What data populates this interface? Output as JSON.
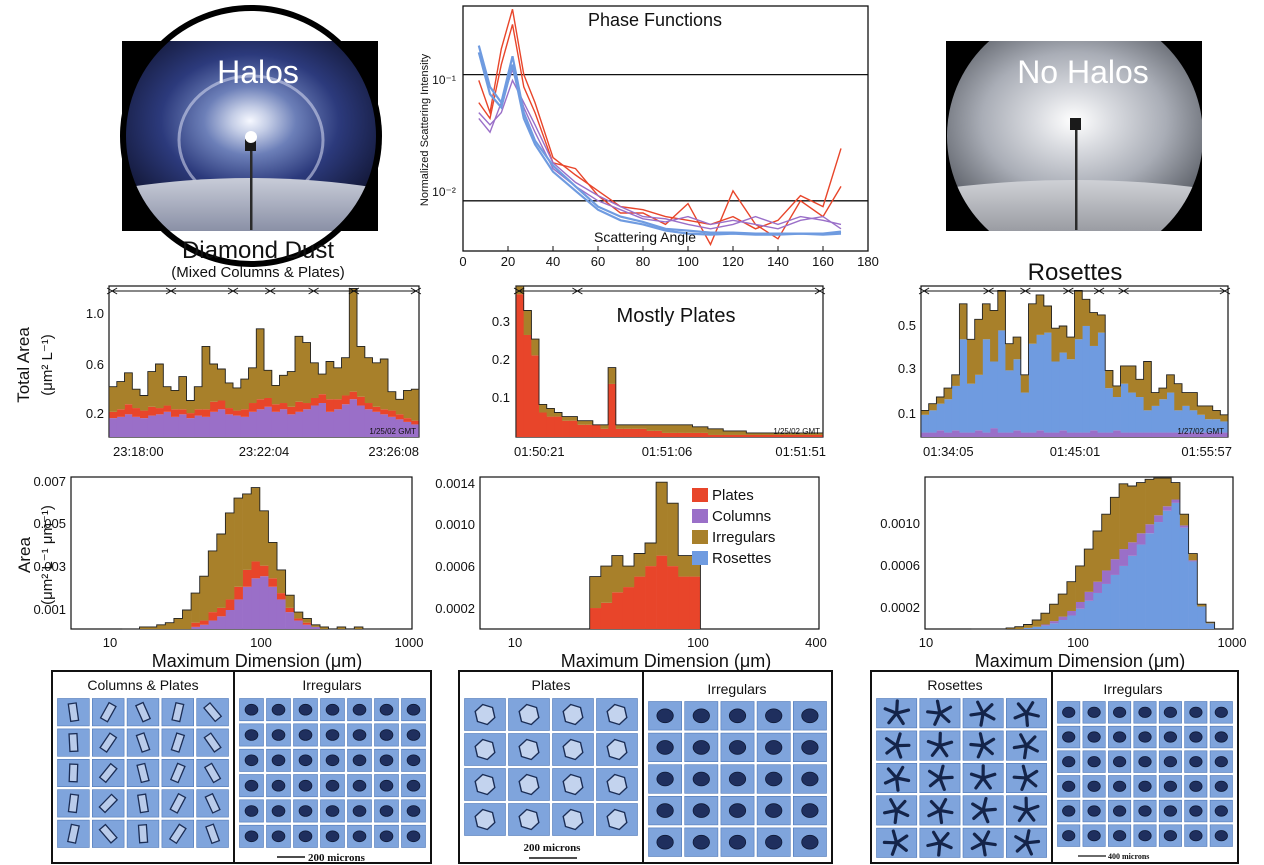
{
  "colors": {
    "plates": "#e8452a",
    "columns": "#9a6fc8",
    "irregulars": "#a8802a",
    "rosettes": "#6f9be0",
    "frame": "#111111"
  },
  "photos": {
    "left": {
      "caption": "Halos",
      "title": "Diamond Dust",
      "subtitle": "(Mixed Columns & Plates)"
    },
    "right": {
      "caption": "No Halos",
      "title": "Rosettes"
    }
  },
  "phase": {
    "title": "Phase Functions",
    "ylabel": "Normalized Scattering Intensity",
    "xlabel": "Scattering Angle",
    "yticks": [
      "10⁻¹",
      "10⁻²"
    ],
    "xticks": [
      "0",
      "20",
      "40",
      "60",
      "80",
      "100",
      "120",
      "140",
      "160",
      "180"
    ]
  },
  "ts": {
    "ylabel1": "Total Area",
    "ylabel2": "(μm² L⁻¹)",
    "a": {
      "yticks": [
        "1.0",
        "0.6",
        "0.2"
      ],
      "xticks": [
        "23:18:00",
        "23:22:04",
        "23:26:08"
      ],
      "stamp": "1/25/02 GMT"
    },
    "b": {
      "title": "Mostly Plates",
      "yticks": [
        "0.3",
        "0.2",
        "0.1"
      ],
      "xticks": [
        "01:50:21",
        "01:51:06",
        "01:51:51"
      ],
      "stamp": "1/25/02 GMT"
    },
    "c": {
      "yticks": [
        "0.5",
        "0.3",
        "0.1"
      ],
      "xticks": [
        "01:34:05",
        "01:45:01",
        "01:55:57"
      ],
      "stamp": "1/27/02 GMT"
    }
  },
  "sd": {
    "ylabel1": "Area",
    "ylabel2": "(μm² L⁻¹ μm⁻¹)",
    "xlabel": "Maximum Dimension (μm)",
    "a": {
      "yticks": [
        "0.007",
        "0.005",
        "0.003",
        "0.001"
      ],
      "xticks": [
        "10",
        "100",
        "1000"
      ]
    },
    "b": {
      "yticks": [
        "0.0014",
        "0.0010",
        "0.0006",
        "0.0002"
      ],
      "xticks": [
        "10",
        "100",
        "400"
      ]
    },
    "c": {
      "yticks": [
        "0.0010",
        "0.0006",
        "0.0002"
      ],
      "xticks": [
        "10",
        "100",
        "1000"
      ]
    }
  },
  "legend": [
    "Plates",
    "Columns",
    "Irregulars",
    "Rosettes"
  ],
  "imagery": {
    "a": {
      "left": "Columns & Plates",
      "right": "Irregulars",
      "scale": "200 microns"
    },
    "b": {
      "left": "Plates",
      "right": "Irregulars",
      "scale": "200 microns"
    },
    "c": {
      "left": "Rosettes",
      "right": "Irregulars",
      "scale": "400 microns"
    }
  },
  "chart_data": [
    {
      "type": "line",
      "title": "Phase Functions",
      "xlabel": "Scattering Angle",
      "ylabel": "Normalized Scattering Intensity",
      "xlim": [
        0,
        180
      ],
      "ylim": [
        0.004,
        0.35
      ],
      "yscale": "log",
      "series": [
        {
          "color": "#e8452a",
          "x": [
            7,
            12,
            17,
            22,
            27,
            32,
            40,
            50,
            60,
            70,
            80,
            90,
            100,
            110,
            120,
            130,
            140,
            150,
            160,
            168
          ],
          "y": [
            0.09,
            0.05,
            0.16,
            0.33,
            0.1,
            0.06,
            0.022,
            0.016,
            0.012,
            0.009,
            0.0085,
            0.0075,
            0.007,
            0.0065,
            0.0075,
            0.006,
            0.007,
            0.011,
            0.009,
            0.026
          ]
        },
        {
          "color": "#e8452a",
          "x": [
            7,
            12,
            17,
            22,
            27,
            32,
            40,
            50,
            60,
            70,
            80,
            90,
            100,
            110,
            120,
            130,
            140,
            150,
            160,
            168
          ],
          "y": [
            0.06,
            0.045,
            0.12,
            0.25,
            0.08,
            0.05,
            0.02,
            0.018,
            0.011,
            0.008,
            0.008,
            0.0065,
            0.0095,
            0.0045,
            0.012,
            0.0065,
            0.005,
            0.01,
            0.0075,
            0.013
          ]
        },
        {
          "color": "#9a6fc8",
          "x": [
            7,
            12,
            17,
            22,
            27,
            32,
            40,
            50,
            60,
            70,
            80,
            90,
            100,
            110,
            120,
            130,
            140,
            150,
            160,
            168
          ],
          "y": [
            0.05,
            0.04,
            0.05,
            0.09,
            0.06,
            0.04,
            0.02,
            0.014,
            0.011,
            0.009,
            0.0075,
            0.0072,
            0.0065,
            0.006,
            0.0065,
            0.0075,
            0.0065,
            0.0075,
            0.007,
            0.0065
          ]
        },
        {
          "color": "#9a6fc8",
          "x": [
            7,
            12,
            17,
            22,
            27,
            32,
            40,
            50,
            60,
            70,
            80,
            90,
            100,
            110,
            120,
            130,
            140,
            150,
            160,
            168
          ],
          "y": [
            0.045,
            0.035,
            0.06,
            0.11,
            0.055,
            0.035,
            0.018,
            0.013,
            0.01,
            0.0085,
            0.0072,
            0.0068,
            0.0075,
            0.0065,
            0.007,
            0.0065,
            0.006,
            0.007,
            0.0075,
            0.006
          ]
        },
        {
          "color": "#6f9be0",
          "x": [
            7,
            12,
            17,
            22,
            27,
            32,
            40,
            50,
            60,
            70,
            80,
            90,
            100,
            110,
            120,
            130,
            140,
            150,
            160,
            168
          ],
          "y": [
            0.17,
            0.08,
            0.06,
            0.14,
            0.05,
            0.03,
            0.019,
            0.013,
            0.009,
            0.0075,
            0.0068,
            0.006,
            0.0058,
            0.0056,
            0.0056,
            0.0055,
            0.0055,
            0.0055,
            0.0055,
            0.0057
          ]
        },
        {
          "color": "#6f9be0",
          "x": [
            7,
            12,
            17,
            22,
            27,
            32,
            40,
            50,
            60,
            70,
            80,
            90,
            100,
            110,
            120,
            130,
            140,
            150,
            160,
            168
          ],
          "y": [
            0.15,
            0.07,
            0.055,
            0.12,
            0.045,
            0.028,
            0.017,
            0.012,
            0.0085,
            0.007,
            0.0065,
            0.0058,
            0.0055,
            0.0054,
            0.0055,
            0.0054,
            0.0054,
            0.0055,
            0.0054,
            0.0055
          ]
        }
      ]
    },
    {
      "type": "area",
      "title": "Diamond Dust",
      "xlabel": "",
      "ylabel": "Total Area",
      "xlim": [
        0,
        40
      ],
      "ylim": [
        0,
        1.2
      ],
      "series": [
        {
          "name": "Columns",
          "values": [
            0.15,
            0.16,
            0.18,
            0.16,
            0.15,
            0.17,
            0.18,
            0.2,
            0.16,
            0.18,
            0.15,
            0.17,
            0.16,
            0.2,
            0.22,
            0.18,
            0.17,
            0.16,
            0.2,
            0.22,
            0.24,
            0.2,
            0.22,
            0.18,
            0.2,
            0.22,
            0.25,
            0.27,
            0.2,
            0.22,
            0.26,
            0.3,
            0.25,
            0.22,
            0.2,
            0.18,
            0.16,
            0.14,
            0.12,
            0.1
          ]
        },
        {
          "name": "Plates",
          "values": [
            0.05,
            0.06,
            0.08,
            0.07,
            0.06,
            0.07,
            0.05,
            0.05,
            0.06,
            0.04,
            0.04,
            0.05,
            0.06,
            0.08,
            0.07,
            0.05,
            0.04,
            0.06,
            0.07,
            0.08,
            0.07,
            0.06,
            0.05,
            0.06,
            0.08,
            0.05,
            0.06,
            0.07,
            0.1,
            0.08,
            0.07,
            0.06,
            0.07,
            0.05,
            0.04,
            0.04,
            0.05,
            0.04,
            0.03,
            0.03
          ]
        },
        {
          "name": "Irregulars",
          "values": [
            0.2,
            0.22,
            0.25,
            0.15,
            0.12,
            0.28,
            0.35,
            0.15,
            0.15,
            0.26,
            0.1,
            0.18,
            0.5,
            0.3,
            0.25,
            0.2,
            0.18,
            0.24,
            0.28,
            0.56,
            0.22,
            0.15,
            0.22,
            0.28,
            0.52,
            0.48,
            0.28,
            0.16,
            0.3,
            0.25,
            0.3,
            0.82,
            0.4,
            0.36,
            0.35,
            0.4,
            0.15,
            0.12,
            0.22,
            0.25
          ]
        }
      ]
    },
    {
      "type": "area",
      "title": "Mostly Plates",
      "xlabel": "",
      "ylabel": "Total Area",
      "xlim": [
        0,
        40
      ],
      "ylim": [
        0,
        0.37
      ],
      "series": [
        {
          "name": "Plates",
          "values": [
            0.35,
            0.25,
            0.2,
            0.06,
            0.05,
            0.05,
            0.04,
            0.04,
            0.03,
            0.03,
            0.03,
            0.02,
            0.13,
            0.02,
            0.02,
            0.02,
            0.02,
            0.015,
            0.015,
            0.01,
            0.01,
            0.01,
            0.01,
            0.01,
            0.01,
            0.005,
            0.005,
            0.005,
            0.005,
            0.005,
            0.005,
            0.005,
            0.005,
            0.005,
            0.005,
            0.005,
            0.005,
            0.005,
            0.005,
            0.005
          ]
        },
        {
          "name": "Irregulars",
          "values": [
            0.02,
            0.06,
            0.04,
            0.02,
            0.02,
            0.01,
            0.01,
            0.01,
            0.01,
            0.01,
            0.0,
            0.01,
            0.04,
            0.01,
            0.01,
            0.01,
            0.01,
            0.015,
            0.015,
            0.02,
            0.02,
            0.02,
            0.02,
            0.015,
            0.015,
            0.015,
            0.015,
            0.01,
            0.01,
            0.01,
            0.005,
            0.005,
            0.005,
            0.005,
            0.005,
            0.005,
            0.005,
            0.005,
            0.005,
            0.005
          ]
        }
      ]
    },
    {
      "type": "area",
      "title": "Rosettes",
      "xlabel": "",
      "ylabel": "Total Area",
      "xlim": [
        0,
        40
      ],
      "ylim": [
        0,
        0.68
      ],
      "series": [
        {
          "name": "Columns",
          "values": [
            0.02,
            0.02,
            0.03,
            0.02,
            0.03,
            0.02,
            0.02,
            0.03,
            0.02,
            0.04,
            0.02,
            0.02,
            0.03,
            0.02,
            0.02,
            0.03,
            0.02,
            0.02,
            0.03,
            0.02,
            0.02,
            0.02,
            0.03,
            0.02,
            0.02,
            0.03,
            0.02,
            0.02,
            0.02,
            0.02,
            0.02,
            0.02,
            0.02,
            0.02,
            0.02,
            0.02,
            0.02,
            0.02,
            0.02,
            0.02
          ]
        },
        {
          "name": "Rosettes",
          "values": [
            0.08,
            0.1,
            0.12,
            0.15,
            0.2,
            0.42,
            0.22,
            0.25,
            0.42,
            0.3,
            0.46,
            0.28,
            0.32,
            0.18,
            0.4,
            0.43,
            0.45,
            0.32,
            0.35,
            0.33,
            0.42,
            0.48,
            0.38,
            0.45,
            0.2,
            0.15,
            0.22,
            0.18,
            0.16,
            0.1,
            0.12,
            0.15,
            0.18,
            0.1,
            0.12,
            0.1,
            0.08,
            0.06,
            0.06,
            0.05
          ]
        },
        {
          "name": "Irregulars",
          "values": [
            0.02,
            0.03,
            0.03,
            0.05,
            0.05,
            0.16,
            0.2,
            0.25,
            0.16,
            0.23,
            0.18,
            0.12,
            0.1,
            0.08,
            0.18,
            0.18,
            0.12,
            0.15,
            0.12,
            0.1,
            0.22,
            0.12,
            0.15,
            0.08,
            0.08,
            0.05,
            0.08,
            0.12,
            0.08,
            0.22,
            0.06,
            0.05,
            0.08,
            0.12,
            0.06,
            0.08,
            0.04,
            0.06,
            0.04,
            0.03
          ]
        }
      ]
    },
    {
      "type": "area",
      "title": "",
      "xlabel": "Maximum Dimension (μm)",
      "ylabel": "Area",
      "xlim": [
        10,
        1000
      ],
      "ylim": [
        0,
        0.0072
      ],
      "xscale": "log",
      "series": [
        {
          "name": "Columns",
          "values": [
            0,
            0,
            0,
            0,
            0,
            0,
            0,
            0,
            0.0001,
            0.0002,
            0.0004,
            0.0006,
            0.0009,
            0.0014,
            0.002,
            0.0024,
            0.0025,
            0.002,
            0.0014,
            0.0008,
            0.0004,
            0.0002,
            0.0001,
            0,
            0,
            0,
            0,
            0,
            0,
            0
          ]
        },
        {
          "name": "Plates",
          "values": [
            0,
            0,
            0,
            0,
            0,
            0,
            0,
            0,
            0.0002,
            0.0002,
            0.0004,
            0.0004,
            0.0005,
            0.0006,
            0.0008,
            0.0008,
            0.0005,
            0.0004,
            0.0003,
            0.0002,
            0.0001,
            0.0001,
            0,
            0,
            0,
            0,
            0,
            0,
            0,
            0
          ]
        },
        {
          "name": "Irregulars",
          "values": [
            0,
            0,
            0.0001,
            0.0001,
            0.0002,
            0.0003,
            0.0005,
            0.0009,
            0.0014,
            0.0021,
            0.0029,
            0.0035,
            0.0041,
            0.0042,
            0.0036,
            0.0035,
            0.0026,
            0.0017,
            0.0011,
            0.0006,
            0.0003,
            0.0002,
            0.0001,
            0.0001,
            0,
            0.0001,
            0,
            0.0001,
            0,
            0
          ]
        }
      ]
    },
    {
      "type": "area",
      "title": "",
      "xlabel": "Maximum Dimension (μm)",
      "ylabel": "Area",
      "xlim": [
        10,
        400
      ],
      "ylim": [
        0,
        0.00145
      ],
      "xscale": "log",
      "series": [
        {
          "name": "Plates",
          "values": [
            0.0002,
            0.00025,
            0.00035,
            0.0004,
            0.0005,
            0.0006,
            0.0007,
            0.0006,
            0.0005,
            0.0005
          ]
        },
        {
          "name": "Irregulars",
          "values": [
            0.0003,
            0.00035,
            0.00035,
            0.0002,
            0.00022,
            0.00022,
            0.0007,
            0.0006,
            0.0002,
            0.0002
          ]
        }
      ]
    },
    {
      "type": "area",
      "title": "",
      "xlabel": "Maximum Dimension (μm)",
      "ylabel": "Area",
      "xlim": [
        10,
        1000
      ],
      "ylim": [
        0,
        0.00135
      ],
      "xscale": "log",
      "series": [
        {
          "name": "Rosettes",
          "values": [
            0,
            0,
            0,
            0,
            0,
            0,
            1e-05,
            2e-05,
            3e-05,
            5e-05,
            8e-05,
            0.00012,
            0.00018,
            0.00025,
            0.00032,
            0.0004,
            0.00048,
            0.00056,
            0.00065,
            0.00075,
            0.00085,
            0.00095,
            0.00105,
            0.00112,
            0.0009,
            0.0006,
            0.0002,
            5e-05
          ]
        },
        {
          "name": "Columns",
          "values": [
            0,
            0,
            0,
            0,
            0,
            0,
            0,
            0,
            1e-05,
            2e-05,
            3e-05,
            4e-05,
            6e-05,
            8e-05,
            0.0001,
            0.00012,
            0.00014,
            0.00015,
            0.00012,
            0.0001,
            8e-05,
            6e-05,
            4e-05,
            3e-05,
            2e-05,
            1e-05,
            0,
            0
          ]
        },
        {
          "name": "Irregulars",
          "values": [
            0,
            0,
            0,
            0,
            1e-05,
            2e-05,
            3e-05,
            6e-05,
            0.0001,
            0.00015,
            0.0002,
            0.00026,
            0.00032,
            0.00038,
            0.00045,
            0.0005,
            0.00055,
            0.00058,
            0.0005,
            0.00045,
            0.0004,
            0.00033,
            0.00025,
            0.00015,
            0.0001,
            6e-05,
            2e-05,
            1e-05
          ]
        }
      ]
    }
  ]
}
